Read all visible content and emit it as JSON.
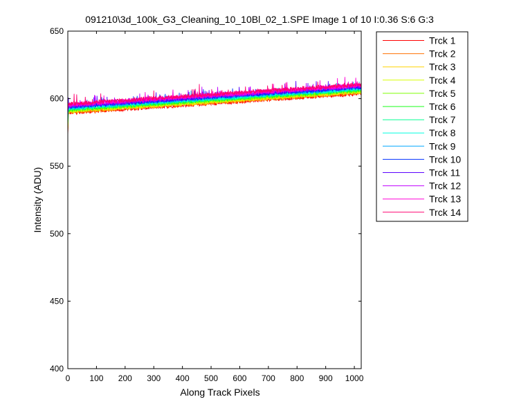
{
  "chart_data": {
    "type": "line",
    "title": "091210\\3d_100k_G3_Cleaning_10_10Bl_02_1.SPE  Image 1 of 10  I:0.36  S:6  G:3",
    "xlabel": "Along Track Pixels",
    "ylabel": "Intensity (ADU)",
    "xlim": [
      0,
      1024
    ],
    "ylim": [
      400,
      650
    ],
    "xticks": [
      0,
      100,
      200,
      300,
      400,
      500,
      600,
      700,
      800,
      900,
      1000
    ],
    "yticks": [
      400,
      450,
      500,
      550,
      600,
      650
    ],
    "grid": false,
    "legend": "outside-top-right",
    "series": [
      {
        "name": "Trck 1",
        "color": "#ff0000",
        "start": 589.5,
        "end": 604.0
      },
      {
        "name": "Trck 2",
        "color": "#ff7000",
        "start": 590.0,
        "end": 604.5
      },
      {
        "name": "Trck 3",
        "color": "#ffd400",
        "start": 590.5,
        "end": 605.0
      },
      {
        "name": "Trck 4",
        "color": "#d8ff00",
        "start": 591.0,
        "end": 605.5
      },
      {
        "name": "Trck 5",
        "color": "#7dff00",
        "start": 591.5,
        "end": 606.0
      },
      {
        "name": "Trck 6",
        "color": "#1aff1a",
        "start": 592.0,
        "end": 606.5
      },
      {
        "name": "Trck 7",
        "color": "#00ff90",
        "start": 592.5,
        "end": 607.0
      },
      {
        "name": "Trck 8",
        "color": "#00ffe0",
        "start": 593.0,
        "end": 607.5
      },
      {
        "name": "Trck 9",
        "color": "#00a8ff",
        "start": 593.5,
        "end": 608.0
      },
      {
        "name": "Trck 10",
        "color": "#0030ff",
        "start": 594.0,
        "end": 608.5
      },
      {
        "name": "Trck 11",
        "color": "#5a00ff",
        "start": 594.5,
        "end": 609.0
      },
      {
        "name": "Trck 12",
        "color": "#c000ff",
        "start": 595.0,
        "end": 609.5
      },
      {
        "name": "Trck 13",
        "color": "#ff00d8",
        "start": 595.5,
        "end": 610.0
      },
      {
        "name": "Trck 14",
        "color": "#ff0070",
        "start": 596.0,
        "end": 610.5
      }
    ]
  }
}
